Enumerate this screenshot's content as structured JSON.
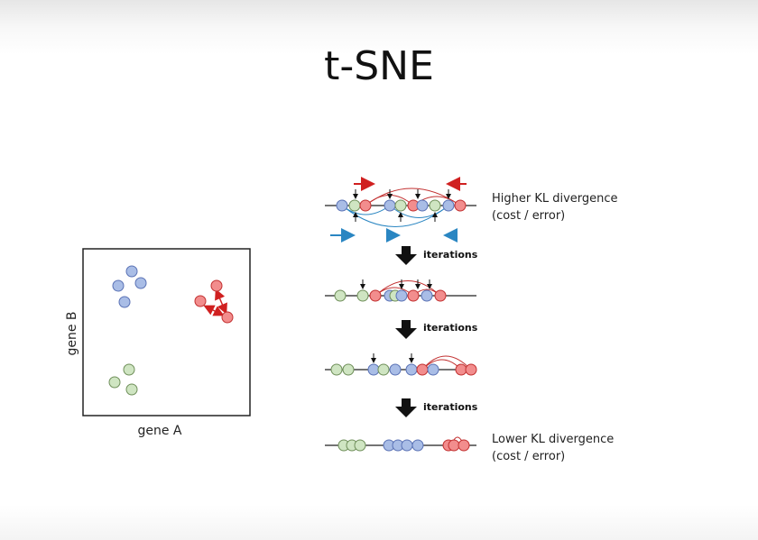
{
  "title": "t-SNE",
  "scatter": {
    "xlabel": "gene A",
    "ylabel": "gene B"
  },
  "stages": [
    {
      "label_line1": "Higher KL divergence",
      "label_line2": "(cost / error)"
    },
    {
      "label_line1": "",
      "label_line2": ""
    },
    {
      "label_line1": "",
      "label_line2": ""
    },
    {
      "label_line1": "Lower KL divergence",
      "label_line2": "(cost / error)"
    }
  ],
  "iteration_label": "iterations",
  "colors": {
    "blue_fill": "#a9bde6",
    "blue_stroke": "#5a72b5",
    "green_fill": "#cfe5c2",
    "green_stroke": "#6f8f5a",
    "red_fill": "#f28d8d",
    "red_stroke": "#c23030",
    "arrow_red": "#d02020",
    "arrow_blue": "#2a86c2"
  }
}
